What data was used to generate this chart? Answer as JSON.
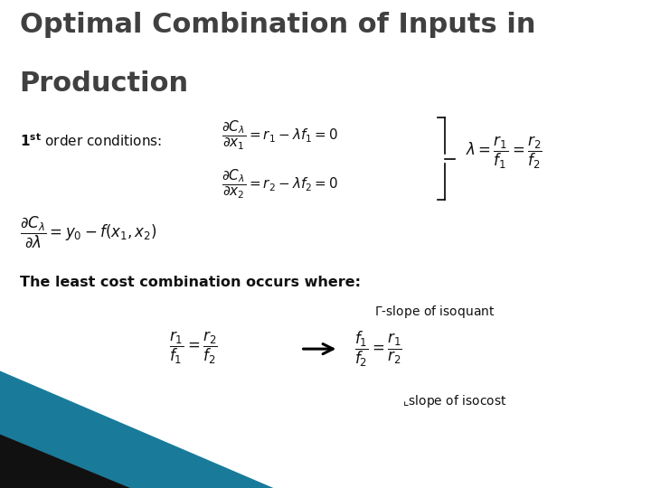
{
  "title_line1": "Optimal Combination of Inputs in",
  "title_line2": "Production",
  "title_color": "#404040",
  "title_fontsize": 22,
  "background_color": "#ffffff",
  "text_color": "#111111",
  "teal_color": "#1a7a9a",
  "black_color": "#111111"
}
